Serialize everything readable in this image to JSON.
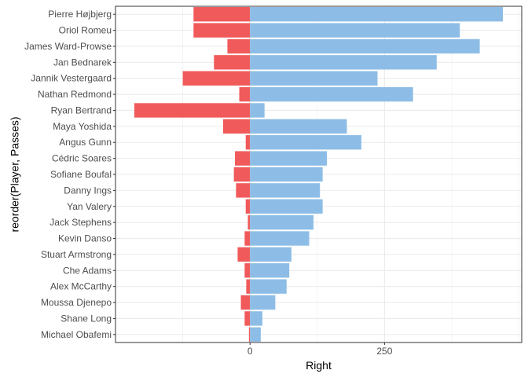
{
  "chart_data": {
    "type": "bar",
    "orientation": "horizontal",
    "categories": [
      "Pierre Højbjerg",
      "Oriol Romeu",
      "James Ward-Prowse",
      "Jan Bednarek",
      "Jannik Vestergaard",
      "Nathan Redmond",
      "Ryan Bertrand",
      "Maya Yoshida",
      "Angus Gunn",
      "Cédric Soares",
      "Sofiane Boufal",
      "Danny Ings",
      "Yan Valery",
      "Jack Stephens",
      "Kevin Danso",
      "Stuart Armstrong",
      "Che Adams",
      "Alex McCarthy",
      "Moussa Djenepo",
      "Shane Long",
      "Michael Obafemi"
    ],
    "series": [
      {
        "values": [
          -105,
          -105,
          -42,
          -67,
          -125,
          -20,
          -215,
          -50,
          -8,
          -28,
          -30,
          -26,
          -8,
          -4,
          -10,
          -23,
          -10,
          -7,
          -17,
          -10,
          -2
        ]
      },
      {
        "values": [
          470,
          390,
          427,
          347,
          237,
          303,
          27,
          180,
          207,
          143,
          135,
          130,
          135,
          118,
          110,
          77,
          73,
          68,
          47,
          23,
          20
        ]
      }
    ],
    "colors": [
      "#f15a5a",
      "#8dbde6"
    ],
    "xlabel": "Right",
    "ylabel": "reorder(Player, Passes)",
    "xlim": [
      -250,
      505
    ],
    "xticks": [
      0,
      250
    ],
    "xtick_labels": [
      "0",
      "250"
    ],
    "grid": true,
    "legend": "none",
    "title": ""
  }
}
